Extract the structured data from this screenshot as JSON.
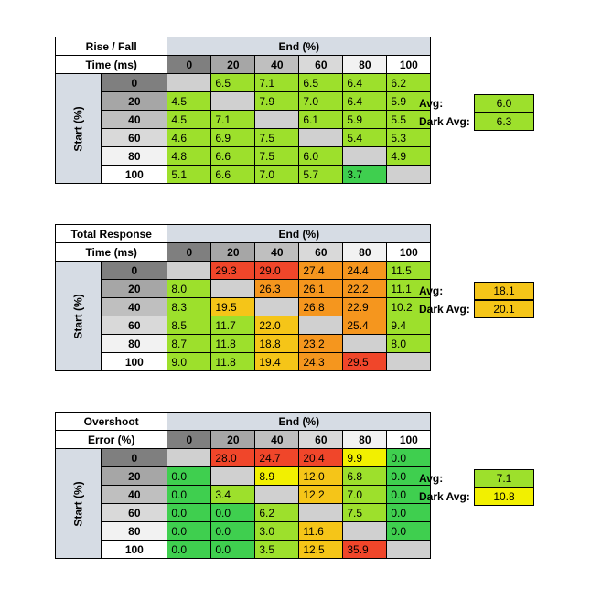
{
  "colors": {
    "header_bg": "#d6dce4",
    "empty": "#d0d0d0",
    "col_shades": [
      "#7f7f7f",
      "#a6a6a6",
      "#bfbfbf",
      "#d9d9d9",
      "#f2f2f2",
      "#ffffff"
    ],
    "green": "#3fcf4f",
    "light_green": "#9de02c",
    "yellow": "#f2f000",
    "amber": "#f5c518",
    "orange": "#f5961e",
    "red": "#f0462a"
  },
  "chart_data": [
    {
      "type": "table",
      "title_lines": [
        "Rise / Fall",
        "Time (ms)"
      ],
      "col_header": "End (%)",
      "row_header": "Start (%)",
      "columns": [
        "0",
        "20",
        "40",
        "60",
        "80",
        "100"
      ],
      "rows": [
        "0",
        "20",
        "40",
        "60",
        "80",
        "100"
      ],
      "values": [
        [
          "",
          "6.5",
          "7.1",
          "6.5",
          "6.4",
          "6.2"
        ],
        [
          "4.5",
          "",
          "7.9",
          "7.0",
          "6.4",
          "5.9"
        ],
        [
          "4.5",
          "7.1",
          "",
          "6.1",
          "5.9",
          "5.5"
        ],
        [
          "4.6",
          "6.9",
          "7.5",
          "",
          "5.4",
          "5.3"
        ],
        [
          "4.8",
          "6.6",
          "7.5",
          "6.0",
          "",
          "4.9"
        ],
        [
          "5.1",
          "6.6",
          "7.0",
          "5.7",
          "3.7",
          ""
        ]
      ],
      "colors": [
        [
          "",
          "light_green",
          "light_green",
          "light_green",
          "light_green",
          "light_green"
        ],
        [
          "light_green",
          "",
          "light_green",
          "light_green",
          "light_green",
          "light_green"
        ],
        [
          "light_green",
          "light_green",
          "",
          "light_green",
          "light_green",
          "light_green"
        ],
        [
          "light_green",
          "light_green",
          "light_green",
          "",
          "light_green",
          "light_green"
        ],
        [
          "light_green",
          "light_green",
          "light_green",
          "light_green",
          "",
          "light_green"
        ],
        [
          "light_green",
          "light_green",
          "light_green",
          "light_green",
          "green",
          ""
        ]
      ],
      "avg_label": "Avg:",
      "avg": "6.0",
      "avg_color": "light_green",
      "dark_avg_label": "Dark Avg:",
      "dark_avg": "6.3",
      "dark_avg_color": "light_green"
    },
    {
      "type": "table",
      "title_lines": [
        "Total Response",
        "Time (ms)"
      ],
      "col_header": "End (%)",
      "row_header": "Start (%)",
      "columns": [
        "0",
        "20",
        "40",
        "60",
        "80",
        "100"
      ],
      "rows": [
        "0",
        "20",
        "40",
        "60",
        "80",
        "100"
      ],
      "values": [
        [
          "",
          "29.3",
          "29.0",
          "27.4",
          "24.4",
          "11.5"
        ],
        [
          "8.0",
          "",
          "26.3",
          "26.1",
          "22.2",
          "11.1"
        ],
        [
          "8.3",
          "19.5",
          "",
          "26.8",
          "22.9",
          "10.2"
        ],
        [
          "8.5",
          "11.7",
          "22.0",
          "",
          "25.4",
          "9.4"
        ],
        [
          "8.7",
          "11.8",
          "18.8",
          "23.2",
          "",
          "8.0"
        ],
        [
          "9.0",
          "11.8",
          "19.4",
          "24.3",
          "29.5",
          ""
        ]
      ],
      "colors": [
        [
          "",
          "red",
          "red",
          "orange",
          "orange",
          "light_green"
        ],
        [
          "light_green",
          "",
          "orange",
          "orange",
          "orange",
          "light_green"
        ],
        [
          "light_green",
          "amber",
          "",
          "orange",
          "orange",
          "light_green"
        ],
        [
          "light_green",
          "light_green",
          "amber",
          "",
          "orange",
          "light_green"
        ],
        [
          "light_green",
          "light_green",
          "amber",
          "orange",
          "",
          "light_green"
        ],
        [
          "light_green",
          "light_green",
          "amber",
          "orange",
          "red",
          ""
        ]
      ],
      "avg_label": "Avg:",
      "avg": "18.1",
      "avg_color": "amber",
      "dark_avg_label": "Dark Avg:",
      "dark_avg": "20.1",
      "dark_avg_color": "amber"
    },
    {
      "type": "table",
      "title_lines": [
        "Overshoot",
        "Error (%)"
      ],
      "col_header": "End (%)",
      "row_header": "Start (%)",
      "columns": [
        "0",
        "20",
        "40",
        "60",
        "80",
        "100"
      ],
      "rows": [
        "0",
        "20",
        "40",
        "60",
        "80",
        "100"
      ],
      "values": [
        [
          "",
          "28.0",
          "24.7",
          "20.4",
          "9.9",
          "0.0"
        ],
        [
          "0.0",
          "",
          "8.9",
          "12.0",
          "6.8",
          "0.0"
        ],
        [
          "0.0",
          "3.4",
          "",
          "12.2",
          "7.0",
          "0.0"
        ],
        [
          "0.0",
          "0.0",
          "6.2",
          "",
          "7.5",
          "0.0"
        ],
        [
          "0.0",
          "0.0",
          "3.0",
          "11.6",
          "",
          "0.0"
        ],
        [
          "0.0",
          "0.0",
          "3.5",
          "12.5",
          "35.9",
          ""
        ]
      ],
      "colors": [
        [
          "",
          "red",
          "red",
          "red",
          "yellow",
          "green"
        ],
        [
          "green",
          "",
          "yellow",
          "amber",
          "light_green",
          "green"
        ],
        [
          "green",
          "light_green",
          "",
          "amber",
          "light_green",
          "green"
        ],
        [
          "green",
          "green",
          "light_green",
          "",
          "light_green",
          "green"
        ],
        [
          "green",
          "green",
          "light_green",
          "amber",
          "",
          "green"
        ],
        [
          "green",
          "green",
          "light_green",
          "amber",
          "red",
          ""
        ]
      ],
      "avg_label": "Avg:",
      "avg": "7.1",
      "avg_color": "light_green",
      "dark_avg_label": "Dark Avg:",
      "dark_avg": "10.8",
      "dark_avg_color": "yellow"
    }
  ]
}
